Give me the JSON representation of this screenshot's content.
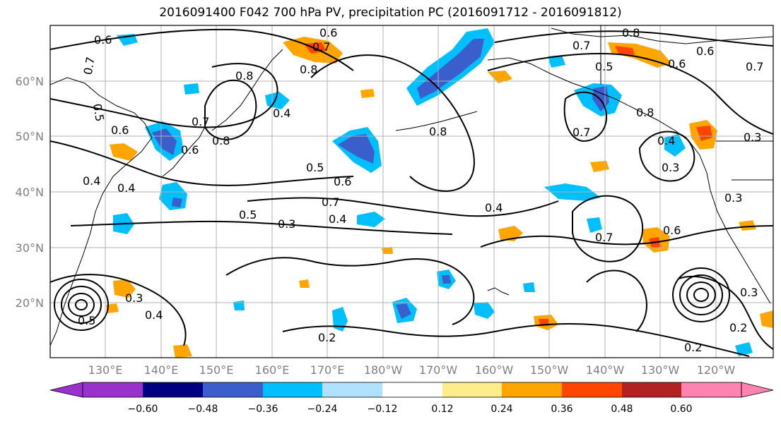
{
  "title": "2016091400 F042 700 hPa PV, precipitation PC (2016091712 - 2016091812)",
  "map": {
    "lon_labels": [
      "130°E",
      "140°E",
      "150°E",
      "160°E",
      "170°E",
      "180°W",
      "170°W",
      "160°W",
      "150°W",
      "140°W",
      "130°W",
      "120°W"
    ],
    "lat_labels": [
      "20°N",
      "30°N",
      "40°N",
      "50°N",
      "60°N"
    ],
    "contour_labels": [
      "0.6",
      "0.7",
      "0.5",
      "0.8",
      "0.6",
      "0.7",
      "0.8",
      "0.4",
      "0.7",
      "0.6",
      "0.8",
      "0.4",
      "0.5",
      "0.6",
      "0.7",
      "0.4",
      "0.5",
      "0.3",
      "0.8",
      "0.7",
      "0.8",
      "0.6",
      "0.5",
      "0.6",
      "0.7",
      "0.4",
      "0.3",
      "0.7",
      "0.6",
      "0.3",
      "0.4",
      "0.3",
      "0.4",
      "0.2",
      "0.2",
      "0.3",
      "0.2",
      "0.3",
      "0.6",
      "0.4",
      "0.8",
      "0.7",
      "0.5"
    ]
  },
  "colorbar": {
    "ticks": [
      "−0.60",
      "−0.48",
      "−0.36",
      "−0.24",
      "−0.12",
      "0.12",
      "0.24",
      "0.36",
      "0.48",
      "0.60"
    ],
    "colors": [
      "#9932CC",
      "#000080",
      "#3A5FCD",
      "#00BFFF",
      "#B0E2FF",
      "#FFFFFF",
      "#FFEC8B",
      "#FFA500",
      "#FF4500",
      "#B22222",
      "#FF83B0"
    ]
  }
}
